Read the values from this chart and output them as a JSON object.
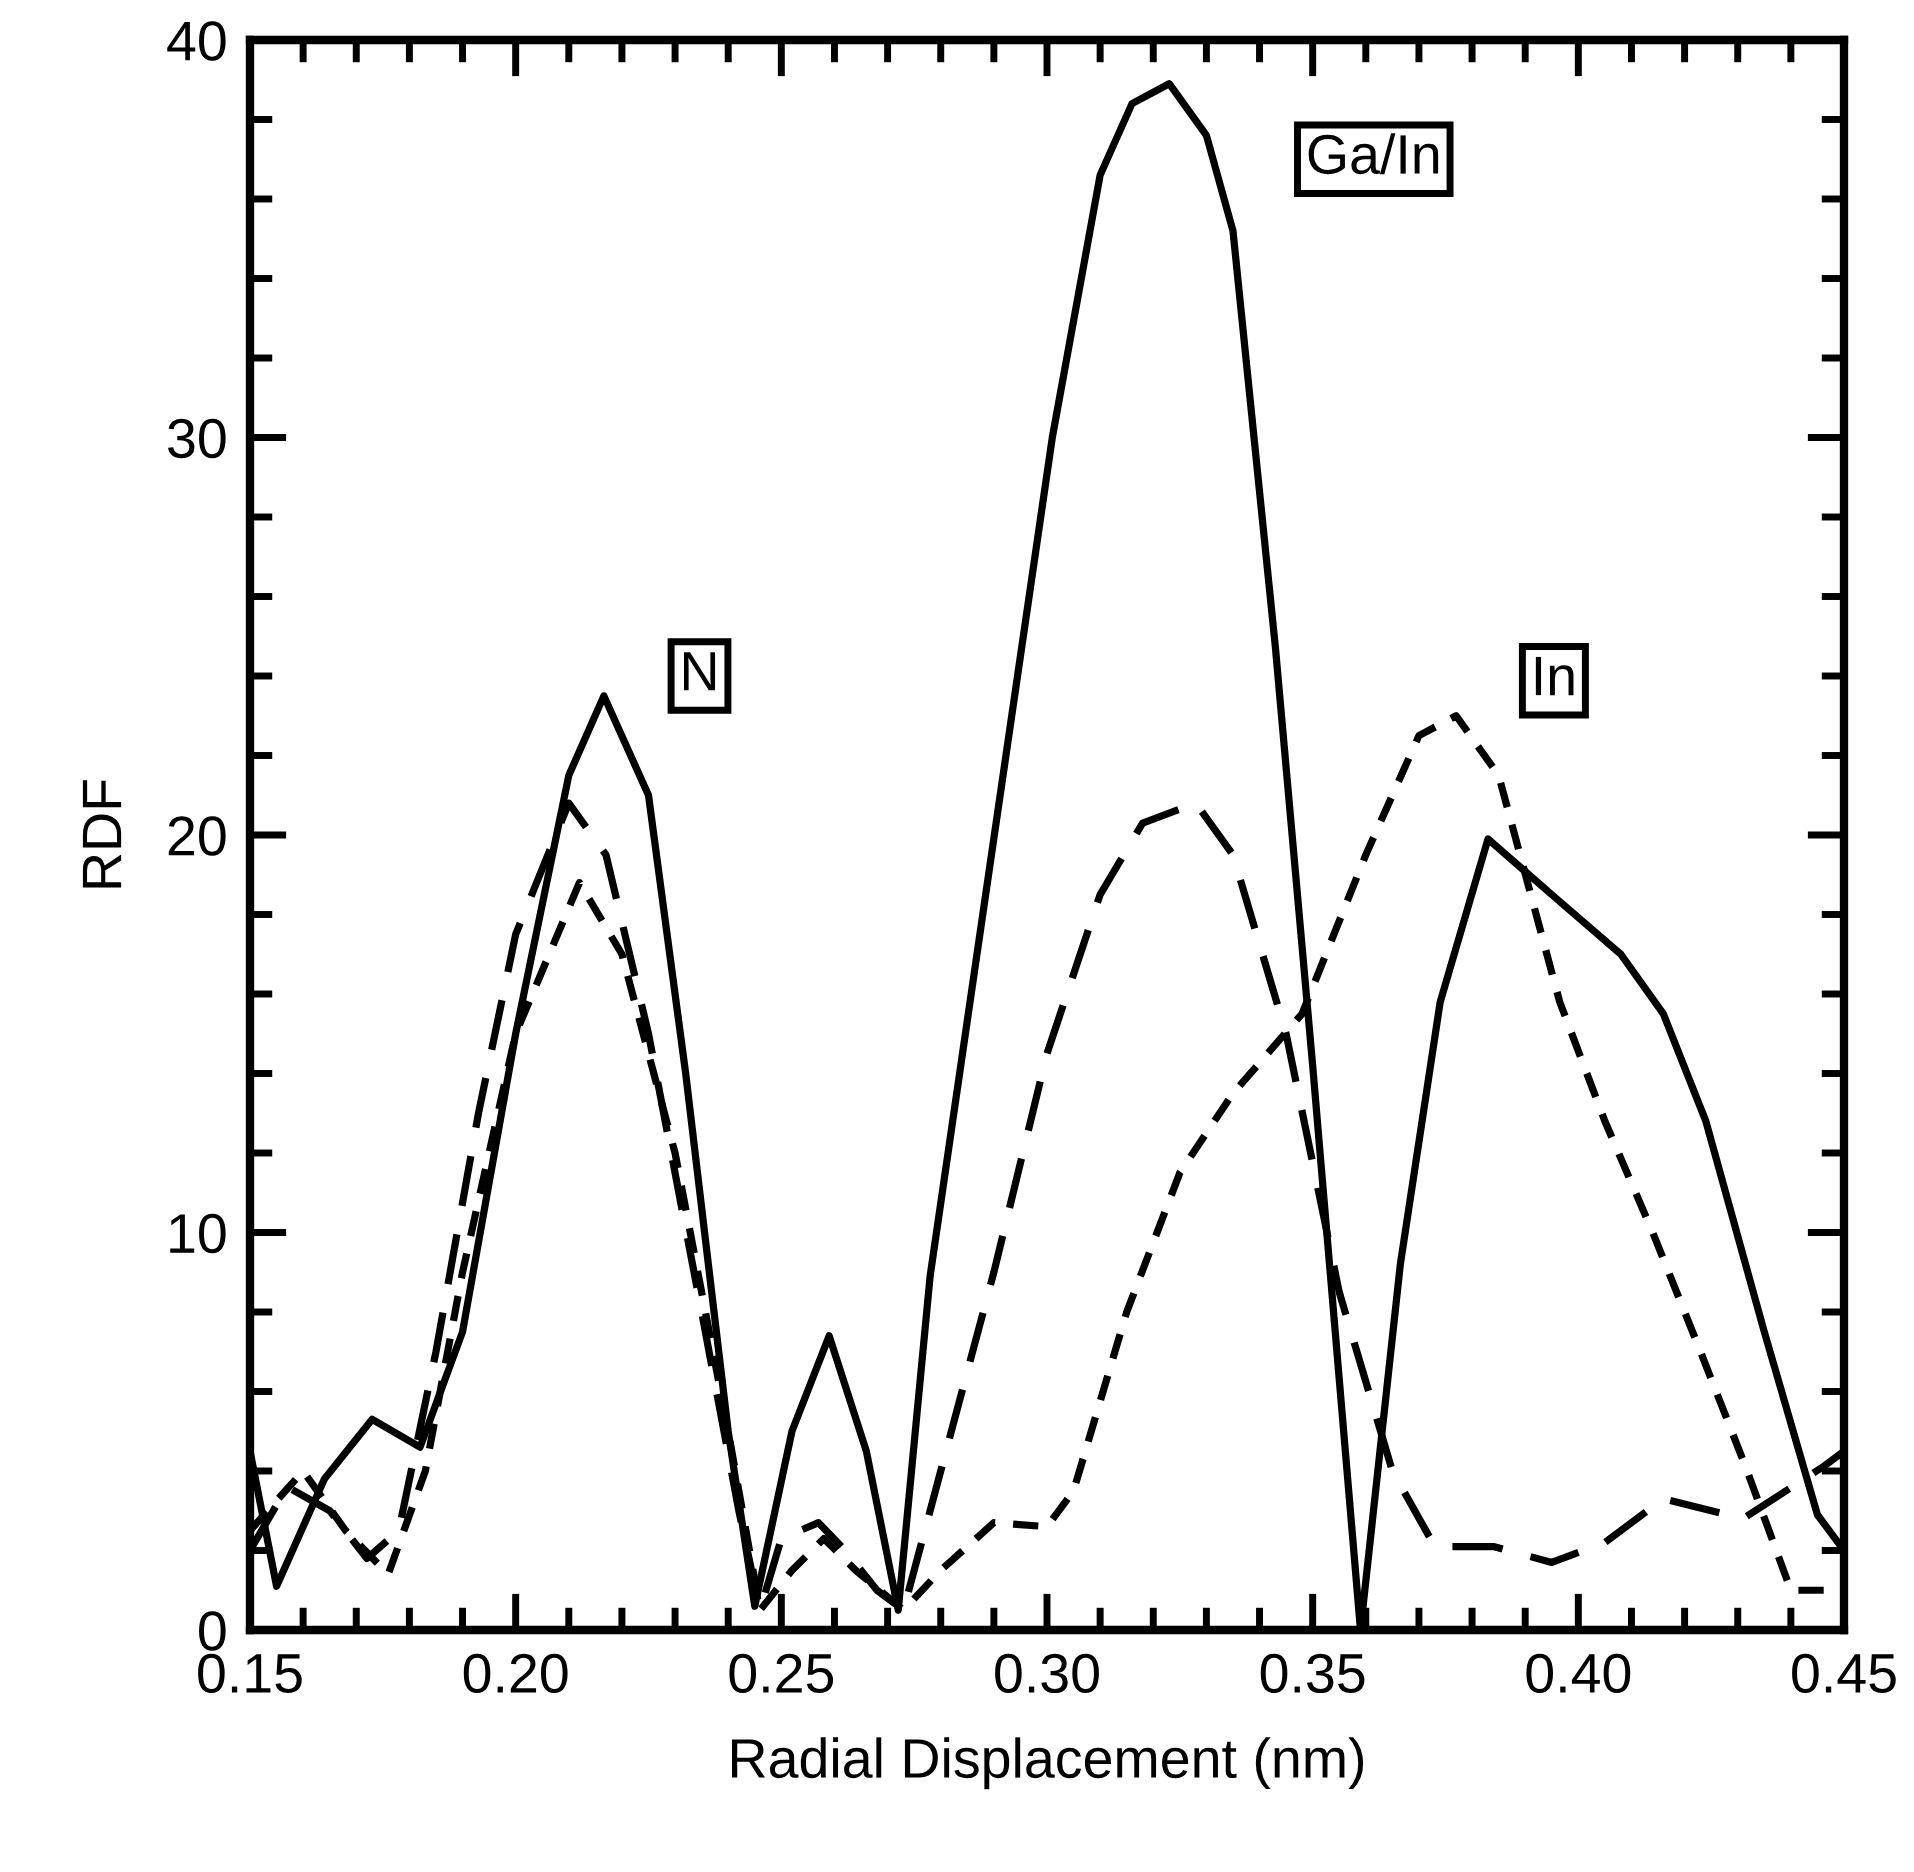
{
  "chart_data": {
    "type": "line",
    "xlabel": "Radial Displacement (nm)",
    "ylabel": "RDF",
    "xlim": [
      0.15,
      0.45
    ],
    "ylim": [
      0,
      40
    ],
    "xticks": [
      {
        "value": 0.15,
        "label": "0.15"
      },
      {
        "value": 0.2,
        "label": "0.20"
      },
      {
        "value": 0.25,
        "label": "0.25"
      },
      {
        "value": 0.3,
        "label": "0.30"
      },
      {
        "value": 0.35,
        "label": "0.35"
      },
      {
        "value": 0.4,
        "label": "0.40"
      },
      {
        "value": 0.45,
        "label": "0.45"
      }
    ],
    "yticks": [
      0,
      10,
      20,
      30,
      40
    ],
    "grid": false,
    "marker": "none",
    "series": [
      {
        "color": "#000000",
        "line_style": "solid",
        "x": [
          0.15,
          0.155,
          0.164,
          0.173,
          0.182,
          0.19,
          0.2,
          0.21,
          0.2166,
          0.225,
          0.232,
          0.24,
          0.245,
          0.252,
          0.259,
          0.266,
          0.272,
          0.278,
          0.2866,
          0.301,
          0.31,
          0.316,
          0.323,
          0.33,
          0.335,
          0.343,
          0.35,
          0.359,
          0.3665,
          0.374,
          0.383,
          0.395,
          0.408,
          0.416,
          0.424,
          0.435,
          0.445,
          0.45
        ],
        "values": [
          4.5,
          1.1,
          3.8,
          5.3,
          4.6,
          7.5,
          15,
          21.5,
          23.5,
          21,
          14,
          5,
          0.6,
          5,
          7.4,
          4.5,
          0.5,
          8.9,
          16.8,
          30,
          36.6,
          38.4,
          38.9,
          37.6,
          35.2,
          24.7,
          14.2,
          0,
          9.2,
          15.8,
          19.9,
          18.5,
          17.0,
          15.5,
          12.8,
          7.5,
          2.9,
          2.0
        ]
      },
      {
        "color": "#000000",
        "line_style": "dashed",
        "x": [
          0.15,
          0.157,
          0.165,
          0.172,
          0.178,
          0.185,
          0.193,
          0.2,
          0.21,
          0.217,
          0.225,
          0.235,
          0.242,
          0.246,
          0.25,
          0.257,
          0.262,
          0.268,
          0.273,
          0.28,
          0.29,
          0.3,
          0.31,
          0.318,
          0.328,
          0.335,
          0.345,
          0.355,
          0.365,
          0.373,
          0.384,
          0.395,
          0.405,
          0.416,
          0.431,
          0.446,
          0.45
        ],
        "values": [
          2.0,
          3.6,
          3.0,
          1.8,
          2.5,
          7,
          13,
          17.5,
          20.8,
          19.5,
          15,
          8,
          3,
          0.5,
          2.3,
          2.7,
          2.0,
          1.0,
          0.5,
          4,
          9,
          14.5,
          18.5,
          20.3,
          20.8,
          19.5,
          15,
          8.5,
          4,
          2.1,
          2.1,
          1.7,
          2.2,
          3.3,
          2.8,
          4.1,
          4.5
        ]
      },
      {
        "color": "#000000",
        "line_style": "dotted",
        "x": [
          0.15,
          0.16,
          0.168,
          0.176,
          0.183,
          0.19,
          0.2,
          0.212,
          0.22,
          0.23,
          0.24,
          0.246,
          0.252,
          0.258,
          0.264,
          0.273,
          0.28,
          0.29,
          0.3,
          0.305,
          0.315,
          0.325,
          0.335,
          0.348,
          0.36,
          0.37,
          0.377,
          0.385,
          0.3965,
          0.405,
          0.414,
          0.423,
          0.4315,
          0.44,
          0.45
        ],
        "values": [
          2.5,
          4.0,
          2.5,
          1.4,
          4,
          9,
          15,
          18.8,
          17,
          12,
          5,
          0.5,
          1.5,
          2.3,
          1.5,
          0.5,
          1.5,
          2.7,
          2.6,
          3.5,
          8,
          11.5,
          13.5,
          15.5,
          19.5,
          22.5,
          23.0,
          21.5,
          15.8,
          12.8,
          10,
          7,
          4.1,
          1.0,
          1.0
        ]
      }
    ],
    "annotations": [
      "N",
      "Ga/In",
      "In"
    ]
  }
}
